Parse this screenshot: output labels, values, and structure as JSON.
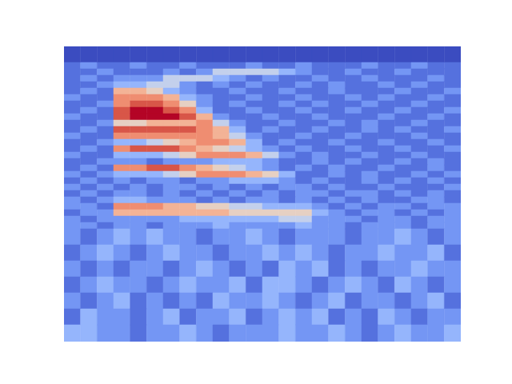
{
  "chart_data": {
    "type": "heatmap",
    "tick_labels": false,
    "grid": false,
    "color": "coolwarm",
    "xlim": [
      0,
      24
    ],
    "ylim": [
      0,
      369
    ],
    "color_range": [
      0,
      9
    ],
    "x_edges": [
      0,
      1,
      2,
      3,
      4,
      5,
      6,
      7,
      8,
      9,
      10,
      11,
      12,
      13,
      14,
      15,
      16,
      17,
      18,
      19,
      20,
      21,
      22,
      23,
      24
    ],
    "y_edges": [
      369,
      349,
      341,
      333,
      325,
      317,
      309,
      301,
      293,
      285,
      277,
      269,
      261,
      253,
      245,
      237,
      229,
      221,
      213,
      205,
      197,
      189,
      181,
      173,
      165,
      157,
      149,
      141,
      121,
      101,
      81,
      61,
      41,
      21,
      0
    ],
    "cells": [
      [
        0,
        0,
        0,
        0,
        0,
        0,
        0,
        0,
        0,
        0,
        0,
        0,
        0,
        0,
        0,
        0,
        0,
        0,
        0,
        0,
        0,
        0,
        0,
        0
      ],
      [
        1,
        2,
        1,
        1,
        2,
        1,
        1,
        2,
        1,
        1,
        1,
        2,
        1,
        1,
        2,
        1,
        1,
        1,
        2,
        1,
        1,
        2,
        1,
        1
      ],
      [
        1,
        1,
        2,
        1,
        1,
        1,
        2,
        1,
        2,
        4,
        4,
        4,
        4,
        3,
        2,
        1,
        1,
        2,
        1,
        1,
        2,
        1,
        1,
        1
      ],
      [
        1,
        2,
        1,
        2,
        2,
        2,
        4,
        4,
        4,
        3,
        2,
        1,
        2,
        1,
        1,
        2,
        1,
        1,
        2,
        1,
        1,
        1,
        2,
        1
      ],
      [
        1,
        1,
        2,
        3,
        3,
        4,
        4,
        2,
        1,
        2,
        1,
        2,
        1,
        1,
        2,
        1,
        2,
        1,
        1,
        2,
        1,
        2,
        1,
        1
      ],
      [
        1,
        2,
        1,
        6,
        6,
        5,
        3,
        2,
        1,
        1,
        2,
        1,
        1,
        2,
        1,
        1,
        2,
        1,
        1,
        1,
        2,
        1,
        1,
        2
      ],
      [
        2,
        1,
        1,
        7,
        7,
        7,
        6,
        3,
        2,
        1,
        1,
        2,
        1,
        1,
        2,
        1,
        1,
        2,
        1,
        2,
        1,
        1,
        2,
        1
      ],
      [
        1,
        1,
        2,
        7,
        8,
        8,
        7,
        5,
        2,
        1,
        2,
        1,
        1,
        2,
        1,
        2,
        1,
        1,
        2,
        1,
        1,
        2,
        1,
        1
      ],
      [
        1,
        2,
        1,
        8,
        9,
        9,
        8,
        7,
        3,
        1,
        1,
        2,
        1,
        1,
        2,
        1,
        1,
        2,
        1,
        1,
        2,
        1,
        1,
        2
      ],
      [
        2,
        1,
        1,
        8,
        9,
        9,
        9,
        8,
        6,
        2,
        1,
        1,
        2,
        1,
        1,
        2,
        1,
        1,
        1,
        2,
        1,
        1,
        2,
        1
      ],
      [
        1,
        1,
        2,
        5,
        5,
        6,
        6,
        6,
        7,
        4,
        2,
        1,
        1,
        2,
        1,
        1,
        2,
        1,
        2,
        1,
        1,
        2,
        1,
        1
      ],
      [
        1,
        2,
        1,
        8,
        8,
        8,
        8,
        8,
        7,
        6,
        3,
        1,
        2,
        1,
        1,
        2,
        1,
        1,
        2,
        1,
        2,
        1,
        1,
        2
      ],
      [
        2,
        1,
        1,
        7,
        7,
        7,
        7,
        7,
        7,
        6,
        4,
        2,
        1,
        1,
        2,
        1,
        1,
        2,
        1,
        1,
        1,
        2,
        1,
        1
      ],
      [
        1,
        1,
        2,
        3,
        3,
        4,
        5,
        6,
        7,
        7,
        6,
        3,
        1,
        2,
        1,
        1,
        2,
        1,
        1,
        2,
        1,
        1,
        2,
        1
      ],
      [
        1,
        2,
        1,
        7,
        8,
        8,
        8,
        7,
        6,
        5,
        4,
        3,
        2,
        1,
        2,
        1,
        1,
        2,
        1,
        1,
        2,
        1,
        1,
        2
      ],
      [
        2,
        1,
        1,
        3,
        3,
        3,
        4,
        5,
        7,
        7,
        7,
        6,
        4,
        2,
        1,
        2,
        1,
        1,
        2,
        1,
        1,
        2,
        1,
        1
      ],
      [
        1,
        1,
        2,
        2,
        2,
        1,
        2,
        2,
        2,
        3,
        3,
        3,
        2,
        1,
        1,
        2,
        1,
        2,
        1,
        1,
        2,
        1,
        2,
        1
      ],
      [
        1,
        2,
        1,
        7,
        7,
        8,
        8,
        7,
        6,
        5,
        4,
        3,
        2,
        1,
        2,
        1,
        2,
        1,
        1,
        2,
        1,
        1,
        2,
        1
      ],
      [
        2,
        1,
        2,
        3,
        3,
        3,
        4,
        5,
        7,
        7,
        7,
        6,
        5,
        3,
        1,
        1,
        2,
        1,
        2,
        1,
        1,
        2,
        1,
        2
      ],
      [
        1,
        2,
        1,
        2,
        1,
        2,
        2,
        1,
        2,
        2,
        3,
        3,
        3,
        2,
        1,
        2,
        1,
        1,
        2,
        1,
        2,
        1,
        2,
        1
      ],
      [
        2,
        1,
        2,
        1,
        2,
        1,
        2,
        2,
        1,
        2,
        1,
        2,
        1,
        2,
        2,
        1,
        2,
        1,
        1,
        2,
        1,
        1,
        1,
        2
      ],
      [
        1,
        2,
        1,
        2,
        2,
        1,
        2,
        1,
        2,
        1,
        2,
        1,
        2,
        1,
        2,
        2,
        1,
        2,
        2,
        1,
        2,
        1,
        2,
        1
      ],
      [
        2,
        1,
        2,
        3,
        3,
        2,
        2,
        2,
        1,
        2,
        1,
        2,
        2,
        1,
        2,
        1,
        2,
        1,
        2,
        1,
        1,
        2,
        2,
        1
      ],
      [
        2,
        2,
        1,
        7,
        7,
        7,
        6,
        6,
        5,
        5,
        4,
        4,
        3,
        3,
        3,
        2,
        1,
        2,
        1,
        2,
        2,
        1,
        2,
        2
      ],
      [
        1,
        2,
        2,
        6,
        6,
        6,
        6,
        6,
        6,
        6,
        5,
        5,
        5,
        5,
        5,
        3,
        2,
        1,
        2,
        2,
        1,
        2,
        1,
        2
      ],
      [
        2,
        1,
        2,
        2,
        2,
        2,
        2,
        3,
        3,
        3,
        3,
        3,
        3,
        4,
        4,
        2,
        2,
        2,
        1,
        2,
        2,
        1,
        2,
        2
      ],
      [
        2,
        2,
        1,
        2,
        2,
        1,
        2,
        2,
        2,
        3,
        2,
        2,
        2,
        2,
        3,
        2,
        2,
        1,
        2,
        2,
        2,
        1,
        2,
        2
      ],
      [
        2,
        1,
        2,
        3,
        2,
        3,
        2,
        2,
        1,
        2,
        2,
        3,
        2,
        1,
        2,
        2,
        2,
        1,
        2,
        2,
        3,
        2,
        1,
        2
      ],
      [
        1,
        2,
        3,
        2,
        1,
        2,
        3,
        2,
        2,
        1,
        2,
        2,
        3,
        2,
        3,
        2,
        1,
        2,
        2,
        3,
        2,
        2,
        3,
        1
      ],
      [
        2,
        1,
        2,
        1,
        2,
        2,
        1,
        2,
        3,
        2,
        1,
        2,
        1,
        3,
        2,
        3,
        1,
        2,
        1,
        2,
        2,
        3,
        2,
        2
      ],
      [
        1,
        2,
        3,
        2,
        2,
        1,
        2,
        3,
        2,
        2,
        3,
        1,
        3,
        3,
        2,
        1,
        2,
        3,
        2,
        1,
        3,
        2,
        1,
        2
      ],
      [
        2,
        1,
        2,
        3,
        1,
        2,
        1,
        2,
        1,
        3,
        2,
        2,
        3,
        2,
        1,
        2,
        3,
        1,
        2,
        2,
        1,
        2,
        3,
        1
      ],
      [
        1,
        3,
        2,
        2,
        1,
        2,
        3,
        1,
        2,
        2,
        3,
        1,
        2,
        3,
        2,
        3,
        1,
        2,
        1,
        3,
        2,
        1,
        2,
        2
      ],
      [
        3,
        3,
        2,
        2,
        1,
        2,
        2,
        3,
        2,
        1,
        2,
        2,
        2,
        3,
        2,
        2,
        3,
        2,
        1,
        2,
        3,
        2,
        2,
        3
      ]
    ]
  }
}
